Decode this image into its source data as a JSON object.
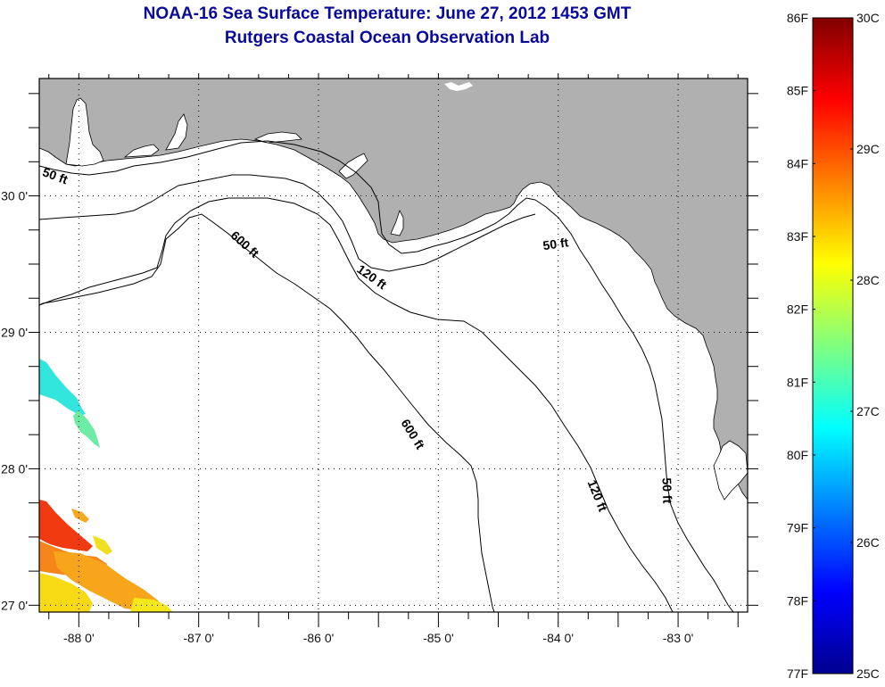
{
  "title": {
    "line1": "NOAA-16 Sea Surface Temperature:  June 27, 2012 1453 GMT",
    "line2": "Rutgers Coastal Ocean Observation Lab"
  },
  "map": {
    "region": "Northeastern Gulf of Mexico / Florida Big Bend",
    "lon_range": [
      -88.33,
      -82.42
    ],
    "lat_range": [
      26.95,
      30.86
    ],
    "grid": "dotted",
    "land_color": "#b0b0b0",
    "water_no_data_color": "#ffffff",
    "x_ticks": [
      {
        "value": -88,
        "label": "-88 0'"
      },
      {
        "value": -87,
        "label": "-87 0'"
      },
      {
        "value": -86,
        "label": "-86 0'"
      },
      {
        "value": -85,
        "label": "-85 0'"
      },
      {
        "value": -84,
        "label": "-84 0'"
      },
      {
        "value": -83,
        "label": "-83 0'"
      }
    ],
    "y_ticks": [
      {
        "value": 30,
        "label": "30 0'"
      },
      {
        "value": 29,
        "label": "29 0'"
      },
      {
        "value": 28,
        "label": "28 0'"
      },
      {
        "value": 27,
        "label": "27 0'"
      }
    ],
    "contour_labels": [
      {
        "text": "50 ft",
        "lon": -88.2,
        "lat": 30.14,
        "angle": 20
      },
      {
        "text": "600 ft",
        "lon": -86.62,
        "lat": 29.64,
        "angle": 42
      },
      {
        "text": "120 ft",
        "lon": -85.56,
        "lat": 29.4,
        "angle": 35
      },
      {
        "text": "50 ft",
        "lon": -84.02,
        "lat": 29.64,
        "angle": -8
      },
      {
        "text": "600 ft",
        "lon": -85.22,
        "lat": 28.25,
        "angle": 58
      },
      {
        "text": "120 ft",
        "lon": -83.68,
        "lat": 27.8,
        "angle": 68
      },
      {
        "text": "50 ft",
        "lon": -83.1,
        "lat": 27.84,
        "angle": 88
      }
    ],
    "sst_patches": [
      {
        "name": "cool-patch",
        "temp_c": 27.0,
        "color": "#33e6dd"
      },
      {
        "name": "cool-patch-tail",
        "temp_c": 27.4,
        "color": "#66eeaa"
      },
      {
        "name": "warm-patch-red",
        "temp_c": 29.5,
        "color": "#f23a10"
      },
      {
        "name": "warm-patch-orange",
        "temp_c": 29.0,
        "color": "#f7861a"
      },
      {
        "name": "warm-patch-yellow",
        "temp_c": 28.3,
        "color": "#f8da14"
      }
    ]
  },
  "colorbar": {
    "min_c": 25,
    "max_c": 30,
    "min_f": 77,
    "max_f": 86,
    "colormap": "jet",
    "f_labels": [
      "86F",
      "85F",
      "84F",
      "83F",
      "82F",
      "81F",
      "80F",
      "79F",
      "78F",
      "77F"
    ],
    "c_labels": [
      "30C",
      "29C",
      "28C",
      "27C",
      "26C",
      "25C"
    ]
  }
}
